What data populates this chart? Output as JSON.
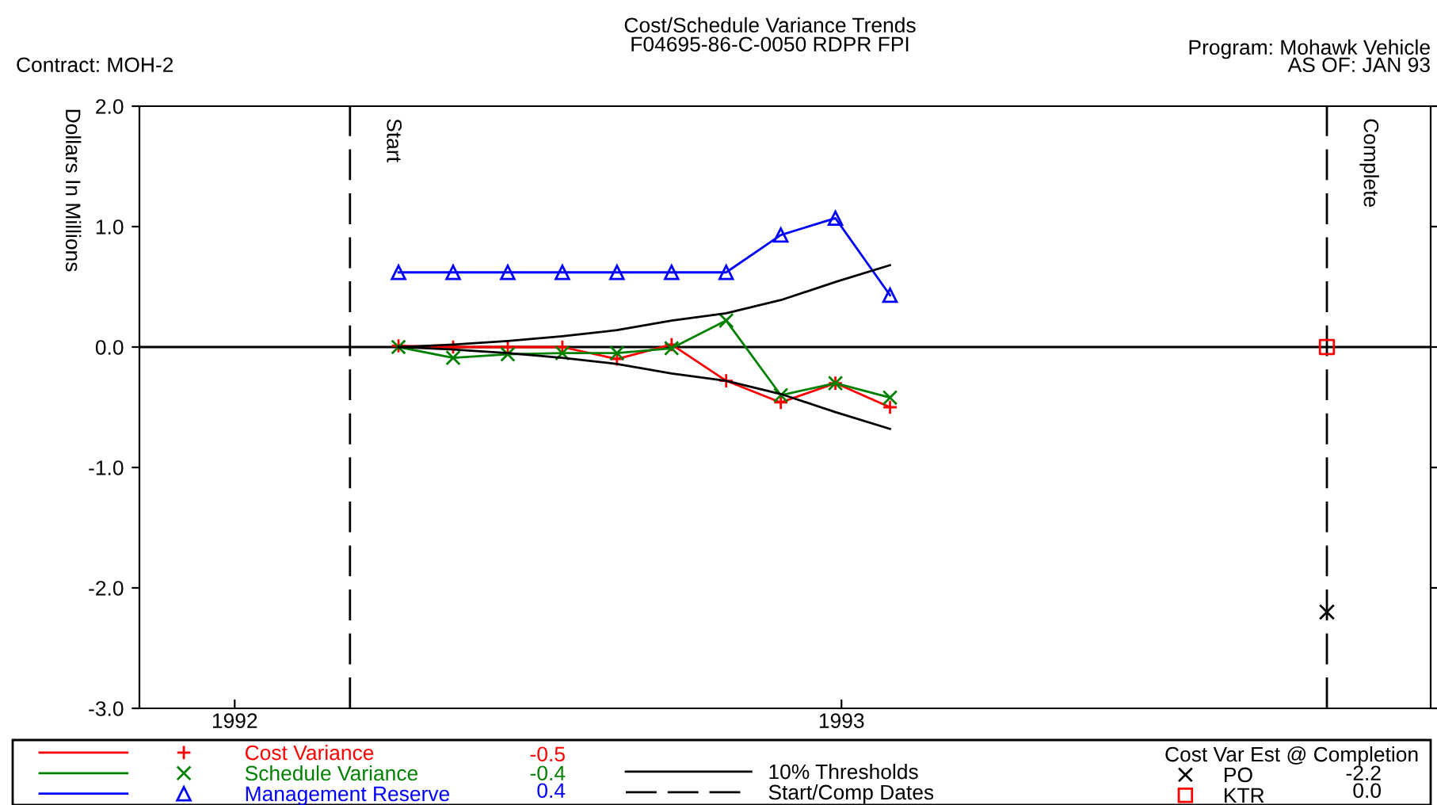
{
  "chart_data": {
    "type": "line",
    "title": "Cost/Schedule Variance Trends",
    "subtitle": "F04695-86-C-0050 RDPR FPI",
    "ylabel": "Dollars In Millions",
    "xlim": [
      1991.843,
      1993.971
    ],
    "xticks": [
      1992,
      1993
    ],
    "ylim": [
      -3,
      2
    ],
    "yticks": [
      {
        "value": -3,
        "label": "-3.0"
      },
      {
        "value": -2,
        "label": "-2.0"
      },
      {
        "value": -1,
        "label": "-1.0"
      },
      {
        "value": 0,
        "label": "0.0"
      },
      {
        "value": 1,
        "label": "1.0"
      },
      {
        "value": 2,
        "label": "2.0"
      }
    ],
    "grid": false,
    "legend": "bottom",
    "x": [
      1992.27,
      1992.36,
      1992.45,
      1992.54,
      1992.63,
      1992.72,
      1992.81,
      1992.9,
      1992.99,
      1993.08
    ],
    "series": [
      {
        "name": "Cost Variance",
        "color": "#ff0000",
        "marker": "cross",
        "values": [
          0.01,
          0.0,
          0.0,
          0.0,
          -0.1,
          0.02,
          -0.28,
          -0.46,
          -0.3,
          -0.5
        ]
      },
      {
        "name": "Schedule Variance",
        "color": "#008000",
        "marker": "x",
        "values": [
          0.0,
          -0.09,
          -0.06,
          -0.05,
          -0.05,
          -0.01,
          0.22,
          -0.4,
          -0.3,
          -0.42
        ]
      },
      {
        "name": "Management Reserve",
        "color": "#0000ff",
        "marker": "triangle",
        "values": [
          0.62,
          0.62,
          0.62,
          0.62,
          0.62,
          0.62,
          0.62,
          0.93,
          1.07,
          0.43
        ]
      },
      {
        "name": "10% Thresholds",
        "color": "#000000",
        "values": [
          0.0,
          0.02,
          0.05,
          0.09,
          0.14,
          0.22,
          0.28,
          0.39,
          0.54,
          0.68
        ]
      },
      {
        "color": "#000000",
        "values": [
          0.0,
          -0.02,
          -0.05,
          -0.09,
          -0.14,
          -0.22,
          -0.28,
          -0.39,
          -0.54,
          -0.68
        ]
      },
      {
        "name": "PO",
        "type": "scatter",
        "color": "#000000",
        "marker": "x",
        "x": [
          1993.8
        ],
        "values": [
          -2.2
        ]
      },
      {
        "name": "KTR",
        "type": "scatter",
        "color": "#ff0000",
        "marker": "square",
        "x": [
          1993.8
        ],
        "values": [
          0.0
        ]
      }
    ],
    "ref_lines": [
      {
        "axis": "y",
        "value": 0,
        "color": "#000000",
        "line_style": "solid"
      },
      {
        "axis": "x",
        "value": 1992.19,
        "label": "Start",
        "color": "#000000",
        "line_style": "dashed"
      },
      {
        "axis": "x",
        "value": 1993.8,
        "label": "Complete",
        "color": "#000000",
        "line_style": "dashed"
      }
    ],
    "legend_title": "Cost Var Est @ Completion",
    "annotations": [
      "Contract: MOH-2",
      "Program: Mohawk Vehicle",
      "AS OF: JAN 93",
      "Start/Comp Dates",
      "-0.5",
      "-0.4",
      "0.4",
      "-2.2",
      "0.0"
    ]
  }
}
